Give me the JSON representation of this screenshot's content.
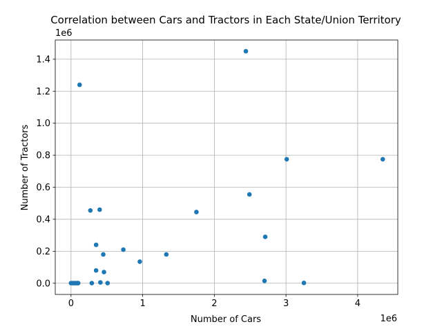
{
  "chart_data": {
    "type": "scatter",
    "title": "Correlation between Cars and Tractors in Each State/Union Territory",
    "xlabel": "Number of Cars",
    "ylabel": "Number of Tractors",
    "x_offset_label": "1e6",
    "y_offset_label": "1e6",
    "xlim": [
      -220000,
      4560000
    ],
    "ylim": [
      -70000,
      1520000
    ],
    "x_ticks": [
      0,
      1000000,
      2000000,
      3000000,
      4000000
    ],
    "x_tick_labels": [
      "0",
      "1",
      "2",
      "3",
      "4"
    ],
    "y_ticks": [
      0,
      200000,
      400000,
      600000,
      800000,
      1000000,
      1200000,
      1400000
    ],
    "y_tick_labels": [
      "0.0",
      "0.2",
      "0.4",
      "0.6",
      "0.8",
      "1.0",
      "1.2",
      "1.4"
    ],
    "grid": true,
    "color": "#1f77b4",
    "points": [
      {
        "x": 2440000,
        "y": 1450000
      },
      {
        "x": 120000,
        "y": 1240000
      },
      {
        "x": 3010000,
        "y": 775000
      },
      {
        "x": 4350000,
        "y": 775000
      },
      {
        "x": 2490000,
        "y": 555000
      },
      {
        "x": 270000,
        "y": 455000
      },
      {
        "x": 400000,
        "y": 460000
      },
      {
        "x": 1750000,
        "y": 445000
      },
      {
        "x": 2710000,
        "y": 290000
      },
      {
        "x": 350000,
        "y": 240000
      },
      {
        "x": 730000,
        "y": 210000
      },
      {
        "x": 450000,
        "y": 180000
      },
      {
        "x": 1330000,
        "y": 180000
      },
      {
        "x": 960000,
        "y": 135000
      },
      {
        "x": 350000,
        "y": 80000
      },
      {
        "x": 460000,
        "y": 70000
      },
      {
        "x": 2700000,
        "y": 15000
      },
      {
        "x": 3250000,
        "y": 2000
      },
      {
        "x": 410000,
        "y": 5000
      },
      {
        "x": 290000,
        "y": 1000
      },
      {
        "x": 510000,
        "y": 1000
      },
      {
        "x": 0,
        "y": 1000
      },
      {
        "x": 20000,
        "y": 1000
      },
      {
        "x": 40000,
        "y": 1000
      },
      {
        "x": 60000,
        "y": 1000
      },
      {
        "x": 75000,
        "y": 1000
      },
      {
        "x": 90000,
        "y": 1000
      },
      {
        "x": 100000,
        "y": 1000
      }
    ]
  }
}
